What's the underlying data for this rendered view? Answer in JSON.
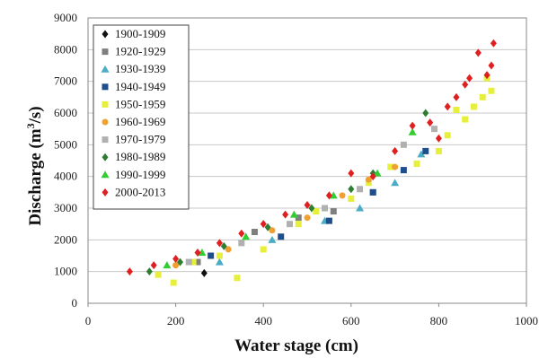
{
  "chart_data": {
    "type": "scatter",
    "xlabel": "Water stage (cm)",
    "ylabel_main": "Discharge (m",
    "ylabel_sup": "3",
    "ylabel_tail": "/s)",
    "xlim": [
      0,
      1000
    ],
    "ylim": [
      0,
      9000
    ],
    "xticks": [
      "0",
      "200",
      "400",
      "600",
      "800",
      "1000"
    ],
    "yticks": [
      "0",
      "1000",
      "2000",
      "3000",
      "4000",
      "5000",
      "6000",
      "7000",
      "8000",
      "9000"
    ],
    "grid": "horizontal",
    "legend_position": "top-left",
    "series": [
      {
        "name": "1900-1909",
        "marker": "diamond",
        "color": "#111111",
        "points": [
          [
            265,
            950
          ]
        ]
      },
      {
        "name": "1920-1929",
        "marker": "square",
        "color": "#7f7f7f",
        "points": [
          [
            250,
            1300
          ],
          [
            380,
            2250
          ],
          [
            480,
            2700
          ],
          [
            560,
            2900
          ],
          [
            650,
            3500
          ]
        ]
      },
      {
        "name": "1930-1939",
        "marker": "triangle",
        "color": "#4bacc6",
        "points": [
          [
            300,
            1300
          ],
          [
            420,
            2000
          ],
          [
            540,
            2600
          ],
          [
            620,
            3000
          ],
          [
            700,
            3800
          ],
          [
            760,
            4700
          ]
        ]
      },
      {
        "name": "1940-1949",
        "marker": "square",
        "color": "#1f4e8c",
        "points": [
          [
            280,
            1500
          ],
          [
            440,
            2100
          ],
          [
            550,
            2600
          ],
          [
            650,
            3500
          ],
          [
            720,
            4200
          ],
          [
            770,
            4800
          ]
        ]
      },
      {
        "name": "1950-1959",
        "marker": "square",
        "color": "#e6f03c",
        "points": [
          [
            160,
            900
          ],
          [
            195,
            650
          ],
          [
            240,
            1300
          ],
          [
            300,
            1500
          ],
          [
            340,
            800
          ],
          [
            400,
            1700
          ],
          [
            480,
            2500
          ],
          [
            520,
            2900
          ],
          [
            600,
            3300
          ],
          [
            640,
            3800
          ],
          [
            690,
            4300
          ],
          [
            750,
            4400
          ],
          [
            800,
            4800
          ],
          [
            820,
            5300
          ],
          [
            840,
            6100
          ],
          [
            860,
            5800
          ],
          [
            880,
            6200
          ],
          [
            900,
            6500
          ],
          [
            910,
            7100
          ],
          [
            920,
            6700
          ]
        ]
      },
      {
        "name": "1960-1969",
        "marker": "circle",
        "color": "#f0a030",
        "points": [
          [
            200,
            1200
          ],
          [
            320,
            1700
          ],
          [
            420,
            2300
          ],
          [
            500,
            2700
          ],
          [
            580,
            3400
          ],
          [
            640,
            3900
          ],
          [
            700,
            4300
          ]
        ]
      },
      {
        "name": "1970-1979",
        "marker": "square",
        "color": "#b0b0b0",
        "points": [
          [
            230,
            1300
          ],
          [
            350,
            1900
          ],
          [
            460,
            2500
          ],
          [
            540,
            3000
          ],
          [
            620,
            3600
          ],
          [
            720,
            5000
          ],
          [
            790,
            5500
          ]
        ]
      },
      {
        "name": "1980-1989",
        "marker": "diamond",
        "color": "#2e7d32",
        "points": [
          [
            140,
            1000
          ],
          [
            210,
            1300
          ],
          [
            310,
            1800
          ],
          [
            410,
            2400
          ],
          [
            510,
            3000
          ],
          [
            600,
            3600
          ],
          [
            650,
            4100
          ],
          [
            770,
            6000
          ]
        ]
      },
      {
        "name": "1990-1999",
        "marker": "triangle",
        "color": "#33cc33",
        "points": [
          [
            180,
            1200
          ],
          [
            260,
            1600
          ],
          [
            360,
            2100
          ],
          [
            470,
            2800
          ],
          [
            560,
            3400
          ],
          [
            660,
            4100
          ],
          [
            740,
            5400
          ]
        ]
      },
      {
        "name": "2000-2013",
        "marker": "diamond",
        "color": "#e02020",
        "points": [
          [
            95,
            1000
          ],
          [
            150,
            1200
          ],
          [
            200,
            1400
          ],
          [
            250,
            1600
          ],
          [
            300,
            1900
          ],
          [
            350,
            2200
          ],
          [
            400,
            2500
          ],
          [
            450,
            2800
          ],
          [
            500,
            3100
          ],
          [
            550,
            3400
          ],
          [
            600,
            4100
          ],
          [
            650,
            4000
          ],
          [
            700,
            4800
          ],
          [
            740,
            5600
          ],
          [
            780,
            5700
          ],
          [
            800,
            5200
          ],
          [
            820,
            6200
          ],
          [
            840,
            6500
          ],
          [
            860,
            6900
          ],
          [
            870,
            7100
          ],
          [
            890,
            7900
          ],
          [
            910,
            7200
          ],
          [
            920,
            7500
          ],
          [
            925,
            8200
          ]
        ]
      }
    ]
  }
}
